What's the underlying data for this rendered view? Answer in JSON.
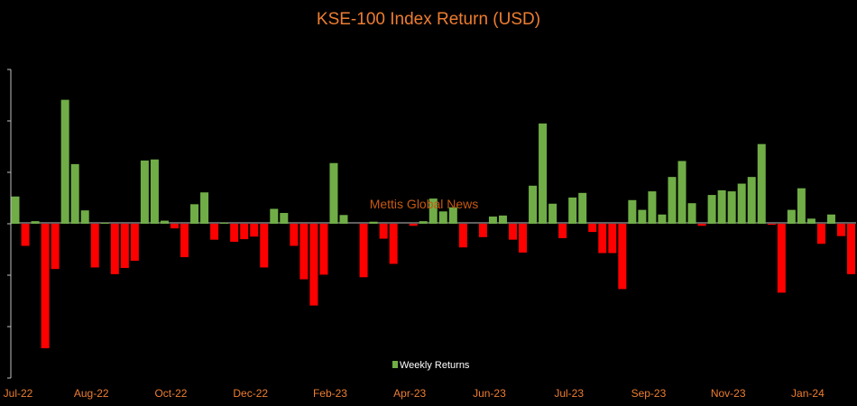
{
  "chart_data": {
    "type": "bar",
    "title": "KSE-100 Index Return (USD)",
    "legend": {
      "label": "Weekly Returns",
      "placement": "bottom-center"
    },
    "watermark": "Mettis Global News",
    "x_tick_labels": [
      "Jul-22",
      "Aug-22",
      "Oct-22",
      "Dec-22",
      "Feb-23",
      "Apr-23",
      "Jun-23",
      "Jul-23",
      "Sep-23",
      "Nov-23",
      "Jan-24"
    ],
    "x_tick_positions": [
      0,
      8,
      16,
      24,
      32,
      40,
      48,
      56,
      64,
      72,
      80
    ],
    "ylim": [
      -3,
      3
    ],
    "y_tick_values": [
      -3,
      -2,
      -1,
      0,
      1,
      2,
      3
    ],
    "y_tick_labels_visible": false,
    "grid": false,
    "colors": {
      "positive": "#70ad47",
      "negative": "#ff0000",
      "title": "#ed7d31",
      "tick_label": "#ed7d31",
      "watermark": "#c65911",
      "axis": "#bfbfbf",
      "legend_text": "#ffffff",
      "background": "#000000"
    },
    "series": [
      {
        "name": "Weekly Returns",
        "values": [
          0.53,
          -0.43,
          0.05,
          -2.42,
          -0.88,
          2.41,
          1.16,
          0.26,
          -0.85,
          0.02,
          -0.98,
          -0.86,
          -0.72,
          1.23,
          1.25,
          0.06,
          -0.09,
          -0.65,
          0.38,
          0.61,
          -0.31,
          0.02,
          -0.35,
          -0.3,
          -0.25,
          -0.85,
          0.29,
          0.21,
          -0.43,
          -1.08,
          -1.59,
          -0.99,
          1.18,
          0.17,
          0.0,
          -1.04,
          0.04,
          -0.29,
          -0.78,
          0.0,
          -0.04,
          0.05,
          0.49,
          0.24,
          0.32,
          -0.46,
          0.0,
          -0.26,
          0.14,
          0.16,
          -0.31,
          -0.56,
          0.74,
          1.95,
          0.39,
          -0.28,
          0.51,
          0.6,
          -0.16,
          -0.57,
          -0.57,
          -1.27,
          0.46,
          0.27,
          0.63,
          0.18,
          0.91,
          1.22,
          0.4,
          -0.04,
          0.56,
          0.65,
          0.63,
          0.78,
          0.91,
          1.55,
          -0.02,
          -1.34,
          0.27,
          0.69,
          0.1,
          -0.39,
          0.18,
          -0.24,
          -0.98
        ]
      }
    ]
  }
}
